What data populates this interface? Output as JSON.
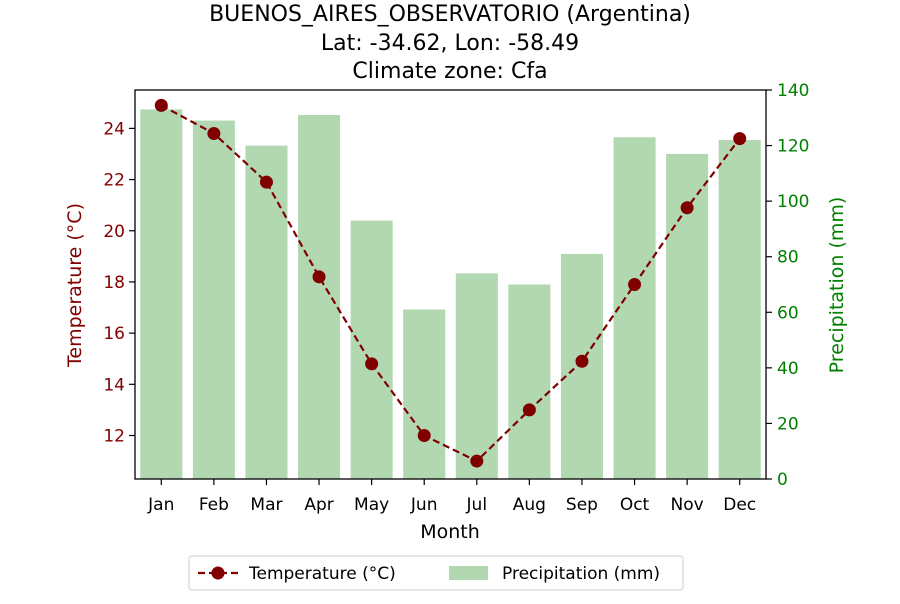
{
  "chart_data": {
    "type": "bar+line",
    "title_lines": [
      "BUENOS_AIRES_OBSERVATORIO (Argentina)",
      "Lat: -34.62, Lon: -58.49",
      "Climate zone: Cfa"
    ],
    "xlabel": "Month",
    "categories": [
      "Jan",
      "Feb",
      "Mar",
      "Apr",
      "May",
      "Jun",
      "Jul",
      "Aug",
      "Sep",
      "Oct",
      "Nov",
      "Dec"
    ],
    "temperature": {
      "name": "Temperature (°C)",
      "axis_label": "Temperature (°C)",
      "values": [
        24.9,
        23.8,
        21.9,
        18.2,
        14.8,
        12.0,
        11.0,
        13.0,
        14.9,
        17.9,
        20.9,
        23.6
      ],
      "ylim": [
        10.3,
        25.5
      ],
      "ticks": [
        12,
        14,
        16,
        18,
        20,
        22,
        24
      ],
      "color": "#800000",
      "style": "dashed line with circle markers"
    },
    "precipitation": {
      "name": "Precipitation (mm)",
      "axis_label": "Precipitation (mm)",
      "values": [
        133,
        129,
        120,
        131,
        93,
        61,
        74,
        70,
        81,
        123,
        117,
        122
      ],
      "ylim": [
        0,
        140
      ],
      "ticks": [
        0,
        20,
        40,
        60,
        80,
        100,
        120,
        140
      ],
      "color": "#b2d8b2",
      "axis_color": "#008000",
      "style": "bars"
    },
    "legend": {
      "position": "bottom-center",
      "entries": [
        "Temperature (°C)",
        "Precipitation (mm)"
      ]
    },
    "grid": false
  }
}
